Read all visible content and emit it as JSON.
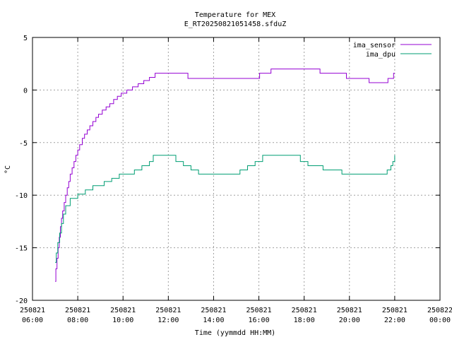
{
  "chart_data": {
    "type": "line",
    "title": "Temperature for MEX",
    "subtitle": "E_RT20250821051458.sfduZ",
    "xlabel": "Time (yymmdd HH:MM)",
    "ylabel": "°C",
    "xlim": [
      "2025-08-21 06:00",
      "2025-08-22 00:00"
    ],
    "ylim": [
      -20,
      5
    ],
    "grid": true,
    "legend_position": "top-right",
    "x_ticks": [
      {
        "date": "250821",
        "time": "06:00"
      },
      {
        "date": "250821",
        "time": "08:00"
      },
      {
        "date": "250821",
        "time": "10:00"
      },
      {
        "date": "250821",
        "time": "12:00"
      },
      {
        "date": "250821",
        "time": "14:00"
      },
      {
        "date": "250821",
        "time": "16:00"
      },
      {
        "date": "250821",
        "time": "18:00"
      },
      {
        "date": "250821",
        "time": "20:00"
      },
      {
        "date": "250821",
        "time": "22:00"
      },
      {
        "date": "250822",
        "time": "00:00"
      }
    ],
    "y_ticks": [
      "5",
      "0",
      "-5",
      "-10",
      "-15",
      "-20"
    ],
    "series": [
      {
        "name": "ima_sensor",
        "color": "#9400d3",
        "points": [
          [
            "07:00",
            -18.2
          ],
          [
            "07:02",
            -17.0
          ],
          [
            "07:05",
            -16.0
          ],
          [
            "07:08",
            -15.0
          ],
          [
            "07:11",
            -14.0
          ],
          [
            "07:14",
            -13.0
          ],
          [
            "07:17",
            -12.2
          ],
          [
            "07:20",
            -11.5
          ],
          [
            "07:24",
            -10.7
          ],
          [
            "07:28",
            -10.0
          ],
          [
            "07:32",
            -9.3
          ],
          [
            "07:36",
            -8.7
          ],
          [
            "07:40",
            -8.0
          ],
          [
            "07:45",
            -7.4
          ],
          [
            "07:50",
            -6.8
          ],
          [
            "07:55",
            -6.2
          ],
          [
            "08:00",
            -5.7
          ],
          [
            "08:05",
            -5.2
          ],
          [
            "08:12",
            -4.6
          ],
          [
            "08:18",
            -4.2
          ],
          [
            "08:25",
            -3.8
          ],
          [
            "08:32",
            -3.4
          ],
          [
            "08:40",
            -3.0
          ],
          [
            "08:48",
            -2.6
          ],
          [
            "08:55",
            -2.3
          ],
          [
            "09:05",
            -1.9
          ],
          [
            "09:15",
            -1.6
          ],
          [
            "09:25",
            -1.3
          ],
          [
            "09:35",
            -0.9
          ],
          [
            "09:45",
            -0.6
          ],
          [
            "09:55",
            -0.3
          ],
          [
            "10:10",
            0.0
          ],
          [
            "10:25",
            0.3
          ],
          [
            "10:40",
            0.6
          ],
          [
            "10:55",
            0.9
          ],
          [
            "11:10",
            1.2
          ],
          [
            "11:25",
            1.6
          ],
          [
            "12:50",
            1.6
          ],
          [
            "12:52",
            1.1
          ],
          [
            "16:00",
            1.1
          ],
          [
            "16:02",
            1.6
          ],
          [
            "16:30",
            1.6
          ],
          [
            "16:32",
            2.0
          ],
          [
            "18:40",
            2.0
          ],
          [
            "18:42",
            1.6
          ],
          [
            "19:50",
            1.6
          ],
          [
            "19:52",
            1.1
          ],
          [
            "20:50",
            1.1
          ],
          [
            "20:52",
            0.7
          ],
          [
            "21:40",
            0.7
          ],
          [
            "21:42",
            1.1
          ],
          [
            "21:55",
            1.1
          ],
          [
            "21:57",
            1.6
          ],
          [
            "22:00",
            1.6
          ]
        ]
      },
      {
        "name": "ima_dpu",
        "color": "#009e73",
        "points": [
          [
            "07:00",
            -16.4
          ],
          [
            "07:03",
            -15.5
          ],
          [
            "07:07",
            -14.5
          ],
          [
            "07:12",
            -13.6
          ],
          [
            "07:17",
            -12.7
          ],
          [
            "07:22",
            -11.8
          ],
          [
            "07:28",
            -11.0
          ],
          [
            "07:40",
            -10.3
          ],
          [
            "08:00",
            -9.9
          ],
          [
            "08:20",
            -9.5
          ],
          [
            "08:40",
            -9.1
          ],
          [
            "09:10",
            -8.7
          ],
          [
            "09:30",
            -8.4
          ],
          [
            "09:50",
            -8.0
          ],
          [
            "10:30",
            -7.6
          ],
          [
            "10:50",
            -7.2
          ],
          [
            "11:10",
            -6.8
          ],
          [
            "11:20",
            -6.2
          ],
          [
            "12:10",
            -6.2
          ],
          [
            "12:20",
            -6.8
          ],
          [
            "12:40",
            -7.2
          ],
          [
            "13:00",
            -7.6
          ],
          [
            "13:20",
            -8.0
          ],
          [
            "14:50",
            -8.0
          ],
          [
            "15:10",
            -7.6
          ],
          [
            "15:30",
            -7.2
          ],
          [
            "15:50",
            -6.8
          ],
          [
            "16:10",
            -6.2
          ],
          [
            "17:30",
            -6.2
          ],
          [
            "17:50",
            -6.8
          ],
          [
            "18:10",
            -7.2
          ],
          [
            "18:50",
            -7.6
          ],
          [
            "19:40",
            -8.0
          ],
          [
            "21:30",
            -8.0
          ],
          [
            "21:40",
            -7.6
          ],
          [
            "21:50",
            -7.2
          ],
          [
            "21:55",
            -6.8
          ],
          [
            "22:00",
            -6.2
          ]
        ]
      }
    ]
  }
}
